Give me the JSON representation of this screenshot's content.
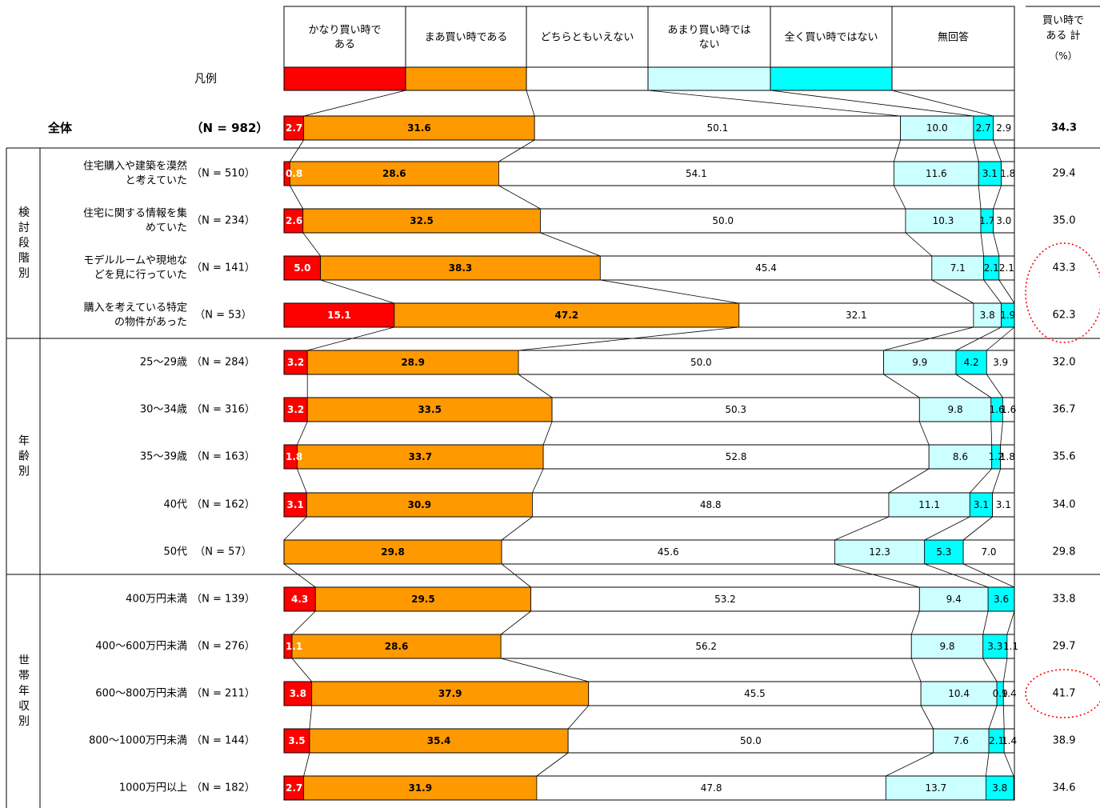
{
  "chart_data": {
    "type": "bar",
    "stacked": "100%",
    "orientation": "horizontal",
    "legend_label": "凡例",
    "categories_legend": [
      {
        "name": "かなり買い時である",
        "color": "#ff0000"
      },
      {
        "name": "まあ買い時である",
        "color": "#ff9900"
      },
      {
        "name": "どちらともいえない",
        "color": "#ffffff"
      },
      {
        "name": "あまり買い時ではない",
        "color": "#ccffff"
      },
      {
        "name": "全く買い時ではない",
        "color": "#00ffff"
      },
      {
        "name": "無回答",
        "color": "#ffffff"
      }
    ],
    "total_header": "買い時である 計",
    "unit": "（%）",
    "rows": [
      {
        "label": "全体",
        "n": "（N = 982）",
        "values": [
          2.7,
          31.6,
          50.1,
          10.0,
          2.7,
          2.9
        ],
        "total": "34.3",
        "bold": true
      },
      {
        "label": "住宅購入や建築を漠然と考えていた",
        "n": "（N = 510）",
        "values": [
          0.8,
          28.6,
          54.1,
          11.6,
          3.1,
          1.8
        ],
        "total": "29.4"
      },
      {
        "label": "住宅に関する情報を集めていた",
        "n": "（N = 234）",
        "values": [
          2.6,
          32.5,
          50.0,
          10.3,
          1.7,
          3.0
        ],
        "total": "35.0"
      },
      {
        "label": "モデルルームや現地などを見に行っていた",
        "n": "（N = 141）",
        "values": [
          5.0,
          38.3,
          45.4,
          7.1,
          2.1,
          2.1
        ],
        "total": "43.3",
        "circled": true
      },
      {
        "label": "購入を考えている特定の物件があった",
        "n": "（N = 53）",
        "values": [
          15.1,
          47.2,
          32.1,
          3.8,
          1.9,
          0
        ],
        "total": "62.3",
        "circled": true
      },
      {
        "label": "25～29歳",
        "n": "（N = 284）",
        "values": [
          3.2,
          28.9,
          50.0,
          9.9,
          4.2,
          3.9
        ],
        "total": "32.0"
      },
      {
        "label": "30～34歳",
        "n": "（N = 316）",
        "values": [
          3.2,
          33.5,
          50.3,
          9.8,
          1.6,
          1.6
        ],
        "total": "36.7"
      },
      {
        "label": "35～39歳",
        "n": "（N = 163）",
        "values": [
          1.8,
          33.7,
          52.8,
          8.6,
          1.2,
          1.8
        ],
        "total": "35.6"
      },
      {
        "label": "40代",
        "n": "（N = 162）",
        "values": [
          3.1,
          30.9,
          48.8,
          11.1,
          3.1,
          3.1
        ],
        "total": "34.0"
      },
      {
        "label": "50代",
        "n": "（N = 57）",
        "values": [
          0,
          29.8,
          45.6,
          12.3,
          5.3,
          7.0
        ],
        "total": "29.8"
      },
      {
        "label": "400万円未満",
        "n": "（N = 139）",
        "values": [
          4.3,
          29.5,
          53.2,
          9.4,
          3.6,
          0
        ],
        "total": "33.8"
      },
      {
        "label": "400～600万円未満",
        "n": "（N = 276）",
        "values": [
          1.1,
          28.6,
          56.2,
          9.8,
          3.3,
          1.1
        ],
        "total": "29.7"
      },
      {
        "label": "600～800万円未満",
        "n": "（N = 211）",
        "values": [
          3.8,
          37.9,
          45.5,
          10.4,
          0.9,
          1.4
        ],
        "total": "41.7",
        "circled": true
      },
      {
        "label": "800～1000万円未満",
        "n": "（N = 144）",
        "values": [
          3.5,
          35.4,
          50.0,
          7.6,
          2.1,
          1.4
        ],
        "total": "38.9"
      },
      {
        "label": "1000万円以上",
        "n": "（N = 182）",
        "values": [
          2.7,
          31.9,
          47.8,
          13.7,
          3.8,
          0
        ],
        "total": "34.6"
      }
    ],
    "segment_labels": [
      [
        "2.7",
        "31.6",
        "50.1",
        "10.0",
        "2.7",
        "2.9"
      ],
      [
        "0.8",
        "28.6",
        "54.1",
        "11.6",
        "3.1",
        "1.8"
      ],
      [
        "2.6",
        "32.5",
        "50.0",
        "10.3",
        "1.7",
        "3.0"
      ],
      [
        "5.0",
        "38.3",
        "45.4",
        "7.1",
        "2.1",
        "2.1"
      ],
      [
        "15.1",
        "47.2",
        "32.1",
        "3.8",
        "1.9",
        ""
      ],
      [
        "3.2",
        "28.9",
        "50.0",
        "9.9",
        "4.2",
        "3.9"
      ],
      [
        "3.2",
        "33.5",
        "50.3",
        "9.8",
        "1.6",
        "1.6"
      ],
      [
        "1.8",
        "33.7",
        "52.8",
        "8.6",
        "1.2",
        "1.8"
      ],
      [
        "3.1",
        "30.9",
        "48.8",
        "11.1",
        "3.1",
        "3.1"
      ],
      [
        "",
        "29.8",
        "45.6",
        "12.3",
        "5.3",
        "7.0"
      ],
      [
        "4.3",
        "29.5",
        "53.2",
        "9.4",
        "3.6",
        ""
      ],
      [
        "1.1",
        "28.6",
        "56.2",
        "9.8",
        "3.3",
        "1.1"
      ],
      [
        "3.8",
        "37.9",
        "45.5",
        "10.4",
        "0.9",
        "1.4"
      ],
      [
        "3.5",
        "35.4",
        "50.0",
        "7.6",
        "2.1",
        "1.4"
      ],
      [
        "2.7",
        "31.9",
        "47.8",
        "13.7",
        "3.8",
        ""
      ]
    ],
    "groups": [
      {
        "label": "検討段階別",
        "rows": [
          1,
          2,
          3,
          4
        ]
      },
      {
        "label": "年齢別",
        "rows": [
          5,
          6,
          7,
          8,
          9
        ]
      },
      {
        "label": "世帯年収別",
        "rows": [
          10,
          11,
          12,
          13,
          14
        ]
      }
    ]
  }
}
